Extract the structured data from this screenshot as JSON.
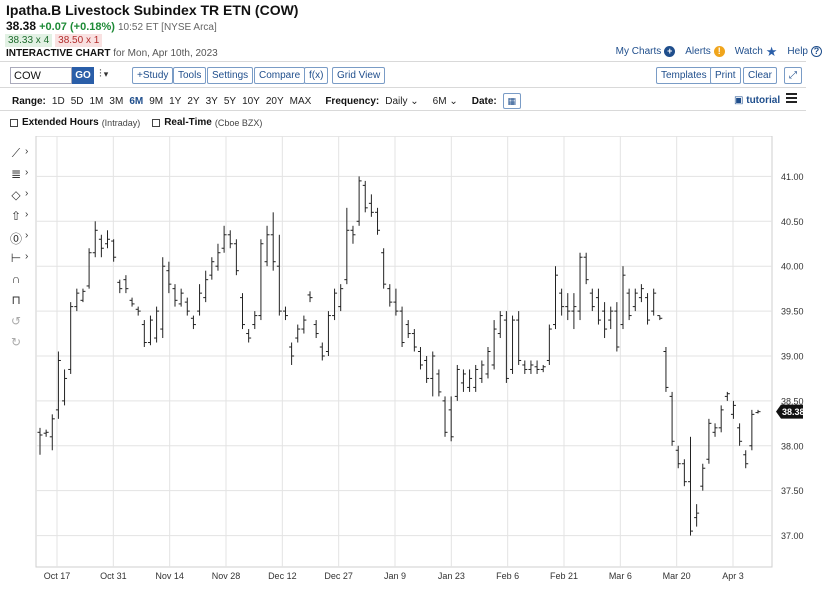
{
  "header": {
    "title": "Ipatha.B Livestock Subindex TR ETN (COW)",
    "price": "38.38",
    "change": "+0.07 (+0.18%)",
    "timestamp": "10:52 ET [NYSE Arca]",
    "bid": "38.33 x 4",
    "ask": "38.50 x 1",
    "chart_label": "INTERACTIVE CHART",
    "chart_for": "for Mon, Apr 10th, 2023"
  },
  "top_links": {
    "my_charts": "My Charts",
    "alerts": "Alerts",
    "watch": "Watch",
    "help": "Help"
  },
  "toolbar": {
    "symbol_value": "COW",
    "go": "GO",
    "study": "+Study",
    "tools": "Tools",
    "settings": "Settings",
    "compare": "Compare",
    "fx": "f(x)",
    "grid_view": "Grid View",
    "templates": "Templates",
    "print": "Print",
    "clear": "Clear"
  },
  "range_row": {
    "range_label": "Range:",
    "ranges": [
      "1D",
      "5D",
      "1M",
      "3M",
      "6M",
      "9M",
      "1Y",
      "2Y",
      "3Y",
      "5Y",
      "10Y",
      "20Y",
      "MAX"
    ],
    "active_range": "6M",
    "frequency_label": "Frequency:",
    "frequency_value": "Daily",
    "period_value": "6M",
    "date_label": "Date:",
    "tutorial": "tutorial"
  },
  "options": {
    "extended_hours": "Extended Hours",
    "extended_hours_sub": "(Intraday)",
    "real_time": "Real-Time",
    "real_time_sub": "(Cboe BZX)"
  },
  "icons": {
    "drawing_tools": [
      "line-tool-icon",
      "fib-tool-icon",
      "shape-tool-icon",
      "arrow-tool-icon",
      "marker-tool-icon",
      "measure-tool-icon",
      "magnet-icon",
      "lock-icon",
      "undo-icon",
      "redo-icon"
    ]
  },
  "colors": {
    "accent": "#1f4e8c",
    "up": "#1d8a36",
    "down": "#b22c2c",
    "bars": "#222222",
    "grid": "#e3e3e3",
    "last_price_bg": "#111111"
  },
  "chart_data": {
    "type": "ohlc",
    "series_name": "COW",
    "interval": "Daily",
    "x_tick_labels": [
      "Oct 17",
      "Oct 31",
      "Nov 14",
      "Nov 28",
      "Dec 12",
      "Dec 27",
      "Jan 9",
      "Jan 23",
      "Feb 6",
      "Feb 21",
      "Mar 6",
      "Mar 20",
      "Apr 3"
    ],
    "y_tick_labels": [
      "37.00",
      "37.50",
      "38.00",
      "38.50",
      "39.00",
      "39.50",
      "40.00",
      "40.50",
      "41.00"
    ],
    "ylim": [
      36.65,
      41.45
    ],
    "last_price": 38.38,
    "bars": [
      {
        "h": 38.2,
        "l": 37.9,
        "o": 38.15,
        "c": 38.12
      },
      {
        "h": 38.18,
        "l": 38.1,
        "o": 38.14,
        "c": 38.15
      },
      {
        "h": 38.35,
        "l": 37.95,
        "o": 38.1,
        "c": 38.3
      },
      {
        "h": 39.05,
        "l": 38.3,
        "o": 38.4,
        "c": 38.95
      },
      {
        "h": 38.85,
        "l": 38.45,
        "o": 38.5,
        "c": 38.75
      },
      {
        "h": 39.6,
        "l": 38.8,
        "o": 38.85,
        "c": 39.55
      },
      {
        "h": 39.75,
        "l": 39.5,
        "o": 39.55,
        "c": 39.7
      },
      {
        "h": 39.75,
        "l": 39.6,
        "o": 39.62,
        "c": 39.72
      },
      {
        "h": 40.2,
        "l": 39.75,
        "o": 39.78,
        "c": 40.15
      },
      {
        "h": 40.5,
        "l": 40.1,
        "o": 40.15,
        "c": 40.4
      },
      {
        "h": 40.35,
        "l": 40.1,
        "o": 40.3,
        "c": 40.2
      },
      {
        "h": 40.4,
        "l": 40.2,
        "o": 40.25,
        "c": 40.3
      },
      {
        "h": 40.3,
        "l": 40.05,
        "o": 40.28,
        "c": 40.1
      },
      {
        "h": 39.85,
        "l": 39.7,
        "o": 39.82,
        "c": 39.75
      },
      {
        "h": 39.9,
        "l": 39.7,
        "o": 39.85,
        "c": 39.75
      },
      {
        "h": 39.65,
        "l": 39.55,
        "o": 39.62,
        "c": 39.58
      },
      {
        "h": 39.55,
        "l": 39.45,
        "o": 39.52,
        "c": 39.5
      },
      {
        "h": 39.4,
        "l": 39.1,
        "o": 39.35,
        "c": 39.15
      },
      {
        "h": 39.45,
        "l": 39.12,
        "o": 39.15,
        "c": 39.4
      },
      {
        "h": 39.55,
        "l": 39.15,
        "o": 39.2,
        "c": 39.5
      },
      {
        "h": 40.1,
        "l": 39.2,
        "o": 39.3,
        "c": 40.0
      },
      {
        "h": 40.05,
        "l": 39.7,
        "o": 39.95,
        "c": 39.8
      },
      {
        "h": 39.8,
        "l": 39.55,
        "o": 39.75,
        "c": 39.62
      },
      {
        "h": 39.75,
        "l": 39.55,
        "o": 39.58,
        "c": 39.7
      },
      {
        "h": 39.65,
        "l": 39.45,
        "o": 39.6,
        "c": 39.5
      },
      {
        "h": 39.45,
        "l": 39.3,
        "o": 39.42,
        "c": 39.35
      },
      {
        "h": 39.8,
        "l": 39.45,
        "o": 39.5,
        "c": 39.7
      },
      {
        "h": 39.95,
        "l": 39.6,
        "o": 39.65,
        "c": 39.85
      },
      {
        "h": 40.1,
        "l": 39.85,
        "o": 39.9,
        "c": 40.05
      },
      {
        "h": 40.25,
        "l": 39.95,
        "o": 40.0,
        "c": 40.15
      },
      {
        "h": 40.45,
        "l": 40.15,
        "o": 40.2,
        "c": 40.35
      },
      {
        "h": 40.4,
        "l": 40.2,
        "o": 40.35,
        "c": 40.25
      },
      {
        "h": 40.3,
        "l": 39.9,
        "o": 40.25,
        "c": 39.95
      },
      {
        "h": 39.7,
        "l": 39.3,
        "o": 39.65,
        "c": 39.35
      },
      {
        "h": 39.3,
        "l": 39.15,
        "o": 39.25,
        "c": 39.2
      },
      {
        "h": 39.5,
        "l": 39.3,
        "o": 39.35,
        "c": 39.45
      },
      {
        "h": 40.3,
        "l": 39.4,
        "o": 39.45,
        "c": 40.25
      },
      {
        "h": 40.45,
        "l": 40.0,
        "o": 40.05,
        "c": 40.35
      },
      {
        "h": 40.6,
        "l": 39.95,
        "o": 40.35,
        "c": 40.05
      },
      {
        "h": 40.35,
        "l": 39.45,
        "o": 40.0,
        "c": 39.5
      },
      {
        "h": 39.55,
        "l": 39.4,
        "o": 39.5,
        "c": 39.45
      },
      {
        "h": 39.15,
        "l": 38.9,
        "o": 39.1,
        "c": 39.0
      },
      {
        "h": 39.35,
        "l": 39.15,
        "o": 39.2,
        "c": 39.3
      },
      {
        "h": 39.45,
        "l": 39.25,
        "o": 39.3,
        "c": 39.4
      },
      {
        "h": 39.72,
        "l": 39.6,
        "o": 39.68,
        "c": 39.65
      },
      {
        "h": 39.4,
        "l": 39.2,
        "o": 39.35,
        "c": 39.25
      },
      {
        "h": 39.15,
        "l": 38.95,
        "o": 39.1,
        "c": 39.0
      },
      {
        "h": 39.5,
        "l": 39.0,
        "o": 39.05,
        "c": 39.45
      },
      {
        "h": 39.75,
        "l": 39.4,
        "o": 39.45,
        "c": 39.7
      },
      {
        "h": 39.8,
        "l": 39.5,
        "o": 39.55,
        "c": 39.75
      },
      {
        "h": 40.65,
        "l": 39.8,
        "o": 39.85,
        "c": 40.4
      },
      {
        "h": 40.45,
        "l": 40.25,
        "o": 40.4,
        "c": 40.35
      },
      {
        "h": 41.0,
        "l": 40.45,
        "o": 40.5,
        "c": 40.95
      },
      {
        "h": 40.95,
        "l": 40.6,
        "o": 40.9,
        "c": 40.65
      },
      {
        "h": 40.8,
        "l": 40.55,
        "o": 40.7,
        "c": 40.6
      },
      {
        "h": 40.65,
        "l": 40.35,
        "o": 40.6,
        "c": 40.4
      },
      {
        "h": 40.2,
        "l": 39.75,
        "o": 40.15,
        "c": 39.8
      },
      {
        "h": 39.8,
        "l": 39.55,
        "o": 39.75,
        "c": 39.6
      },
      {
        "h": 39.75,
        "l": 39.45,
        "o": 39.6,
        "c": 39.5
      },
      {
        "h": 39.55,
        "l": 39.1,
        "o": 39.5,
        "c": 39.15
      },
      {
        "h": 39.4,
        "l": 39.2,
        "o": 39.35,
        "c": 39.25
      },
      {
        "h": 39.3,
        "l": 39.05,
        "o": 39.25,
        "c": 39.1
      },
      {
        "h": 39.1,
        "l": 38.85,
        "o": 39.05,
        "c": 38.9
      },
      {
        "h": 39.0,
        "l": 38.7,
        "o": 38.95,
        "c": 38.75
      },
      {
        "h": 39.05,
        "l": 38.55,
        "o": 38.75,
        "c": 39.0
      },
      {
        "h": 38.85,
        "l": 38.55,
        "o": 38.8,
        "c": 38.6
      },
      {
        "h": 38.55,
        "l": 38.1,
        "o": 38.5,
        "c": 38.15
      },
      {
        "h": 38.55,
        "l": 38.05,
        "o": 38.4,
        "c": 38.1
      },
      {
        "h": 38.9,
        "l": 38.5,
        "o": 38.55,
        "c": 38.85
      },
      {
        "h": 38.85,
        "l": 38.6,
        "o": 38.7,
        "c": 38.8
      },
      {
        "h": 38.85,
        "l": 38.6,
        "o": 38.65,
        "c": 38.75
      },
      {
        "h": 38.9,
        "l": 38.6,
        "o": 38.65,
        "c": 38.85
      },
      {
        "h": 38.95,
        "l": 38.7,
        "o": 38.75,
        "c": 38.9
      },
      {
        "h": 39.1,
        "l": 38.75,
        "o": 38.8,
        "c": 39.05
      },
      {
        "h": 39.4,
        "l": 38.85,
        "o": 38.9,
        "c": 39.3
      },
      {
        "h": 39.5,
        "l": 39.2,
        "o": 39.25,
        "c": 39.45
      },
      {
        "h": 39.5,
        "l": 38.7,
        "o": 39.4,
        "c": 38.75
      },
      {
        "h": 39.45,
        "l": 38.8,
        "o": 38.85,
        "c": 39.4
      },
      {
        "h": 39.5,
        "l": 38.9,
        "o": 39.4,
        "c": 38.95
      },
      {
        "h": 38.95,
        "l": 38.8,
        "o": 38.9,
        "c": 38.85
      },
      {
        "h": 38.95,
        "l": 38.8,
        "o": 38.85,
        "c": 38.9
      },
      {
        "h": 38.95,
        "l": 38.8,
        "o": 38.88,
        "c": 38.85
      },
      {
        "h": 38.9,
        "l": 38.82,
        "o": 38.85,
        "c": 38.88
      },
      {
        "h": 39.35,
        "l": 38.9,
        "o": 38.95,
        "c": 39.3
      },
      {
        "h": 40.0,
        "l": 39.3,
        "o": 39.35,
        "c": 39.9
      },
      {
        "h": 39.75,
        "l": 39.45,
        "o": 39.7,
        "c": 39.55
      },
      {
        "h": 39.7,
        "l": 39.4,
        "o": 39.55,
        "c": 39.5
      },
      {
        "h": 39.7,
        "l": 39.3,
        "o": 39.5,
        "c": 39.55
      },
      {
        "h": 40.15,
        "l": 39.4,
        "o": 39.5,
        "c": 40.1
      },
      {
        "h": 40.15,
        "l": 39.8,
        "o": 40.1,
        "c": 39.85
      },
      {
        "h": 39.75,
        "l": 39.5,
        "o": 39.7,
        "c": 39.55
      },
      {
        "h": 39.75,
        "l": 39.35,
        "o": 39.65,
        "c": 39.4
      },
      {
        "h": 39.6,
        "l": 39.2,
        "o": 39.5,
        "c": 39.3
      },
      {
        "h": 39.55,
        "l": 39.3,
        "o": 39.4,
        "c": 39.5
      },
      {
        "h": 39.6,
        "l": 39.05,
        "o": 39.5,
        "c": 39.1
      },
      {
        "h": 40.0,
        "l": 39.3,
        "o": 39.35,
        "c": 39.9
      },
      {
        "h": 39.75,
        "l": 39.4,
        "o": 39.7,
        "c": 39.45
      },
      {
        "h": 39.75,
        "l": 39.5,
        "o": 39.55,
        "c": 39.7
      },
      {
        "h": 39.8,
        "l": 39.6,
        "o": 39.65,
        "c": 39.75
      },
      {
        "h": 39.7,
        "l": 39.35,
        "o": 39.65,
        "c": 39.4
      },
      {
        "h": 39.75,
        "l": 39.45,
        "o": 39.5,
        "c": 39.7
      },
      {
        "h": 39.45,
        "l": 39.4,
        "o": 39.45,
        "c": 39.42
      },
      {
        "h": 39.1,
        "l": 38.6,
        "o": 39.05,
        "c": 38.65
      },
      {
        "h": 38.6,
        "l": 38.0,
        "o": 38.55,
        "c": 38.05
      },
      {
        "h": 38.0,
        "l": 37.75,
        "o": 37.95,
        "c": 37.8
      },
      {
        "h": 37.85,
        "l": 37.55,
        "o": 37.8,
        "c": 37.6
      },
      {
        "h": 38.1,
        "l": 37.0,
        "o": 37.6,
        "c": 37.05
      },
      {
        "h": 37.35,
        "l": 37.1,
        "o": 37.2,
        "c": 37.25
      },
      {
        "h": 37.8,
        "l": 37.5,
        "o": 37.55,
        "c": 37.75
      },
      {
        "h": 38.3,
        "l": 37.8,
        "o": 37.85,
        "c": 38.25
      },
      {
        "h": 38.25,
        "l": 38.1,
        "o": 38.15,
        "c": 38.2
      },
      {
        "h": 38.45,
        "l": 38.15,
        "o": 38.2,
        "c": 38.4
      },
      {
        "h": 38.6,
        "l": 38.5,
        "o": 38.55,
        "c": 38.58
      },
      {
        "h": 38.5,
        "l": 38.3,
        "o": 38.35,
        "c": 38.45
      },
      {
        "h": 38.25,
        "l": 38.0,
        "o": 38.2,
        "c": 38.05
      },
      {
        "h": 37.95,
        "l": 37.75,
        "o": 37.9,
        "c": 37.8
      },
      {
        "h": 38.4,
        "l": 37.95,
        "o": 38.0,
        "c": 38.35
      },
      {
        "h": 38.4,
        "l": 38.36,
        "o": 38.37,
        "c": 38.38
      }
    ]
  }
}
